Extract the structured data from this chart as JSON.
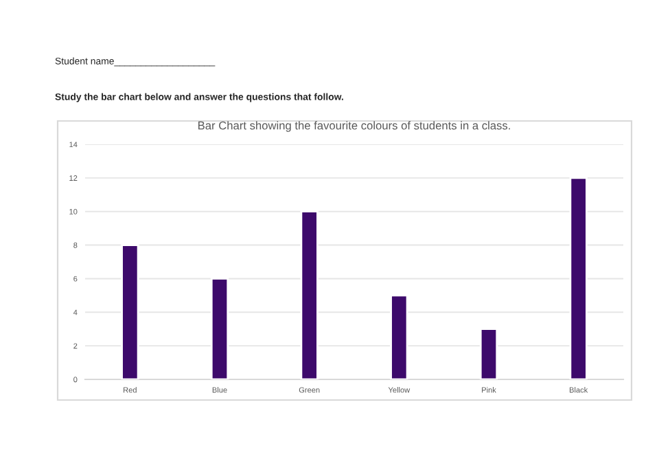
{
  "chart_data": {
    "type": "bar",
    "title": "Bar Chart showing the favourite colours of students in a class.",
    "annotations": [
      "Student name___________________",
      "Study the bar chart below and answer the questions that follow."
    ],
    "categories": [
      "Red",
      "Blue",
      "Green",
      "Yellow",
      "Pink",
      "Black"
    ],
    "values": [
      8,
      6,
      10,
      5,
      3,
      12
    ],
    "color": "#3d0a6b",
    "ylim": [
      0,
      14
    ],
    "yticks": [
      0,
      2,
      4,
      6,
      8,
      10,
      12,
      14
    ],
    "grid": "y"
  }
}
